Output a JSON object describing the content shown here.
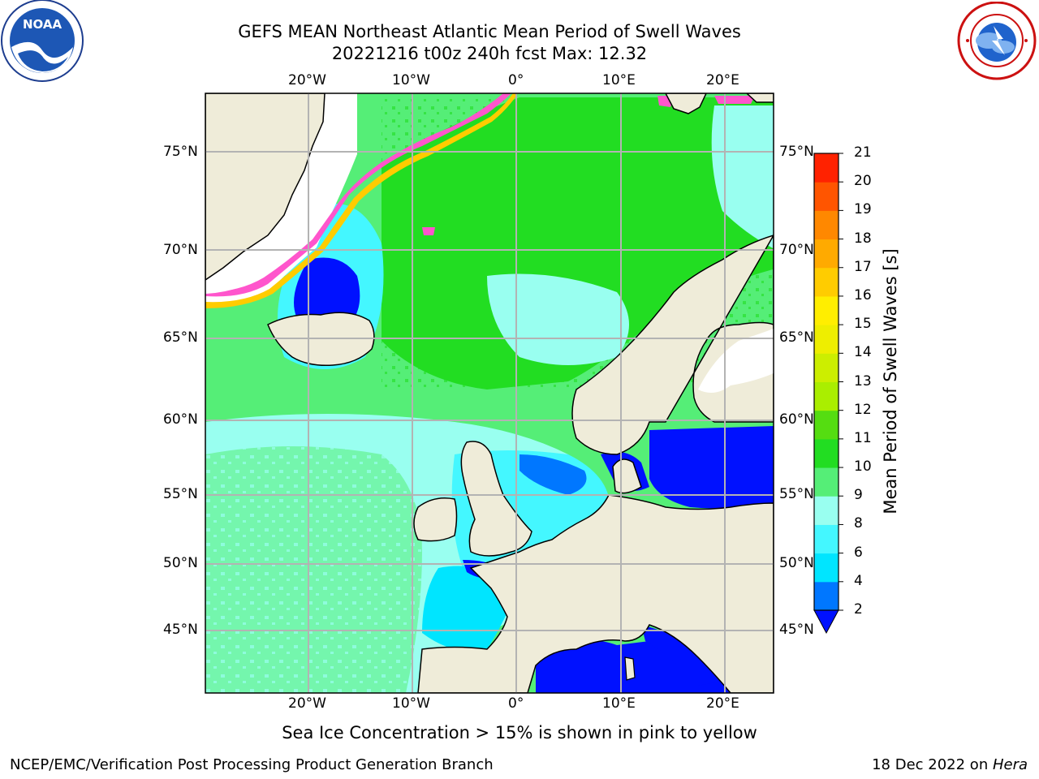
{
  "header": {
    "title_line1": "GEFS MEAN Northeast Atlantic Mean Period of Swell Waves",
    "title_line2": "20221216 t00z 240h fcst   Max: 12.32"
  },
  "map": {
    "lon_labels": [
      "20°W",
      "10°W",
      "0°",
      "10°E",
      "20°E"
    ],
    "lat_labels": [
      "75°N",
      "70°N",
      "65°N",
      "60°N",
      "55°N",
      "50°N",
      "45°N"
    ],
    "ocean_color": "#55ee77",
    "land_color": "#efecd9"
  },
  "colorbar": {
    "title": "Mean Period of Swell Waves [s]",
    "ticks": [
      "2",
      "4",
      "6",
      "8",
      "9",
      "10",
      "11",
      "12",
      "13",
      "14",
      "15",
      "16",
      "17",
      "18",
      "19",
      "20",
      "21"
    ],
    "colors": [
      "#0011ff",
      "#0077ff",
      "#00e5ff",
      "#44f7ff",
      "#99fff0",
      "#55ee77",
      "#22dd22",
      "#55dd11",
      "#aaee00",
      "#ccee00",
      "#eeee00",
      "#ffee00",
      "#ffcc00",
      "#ffaa00",
      "#ff8800",
      "#ff5500",
      "#ff2200",
      "#ff0000"
    ],
    "under_color": "#0011ff"
  },
  "caption": "Sea Ice Concentration > 15% is shown in pink to yellow",
  "footer": {
    "left": "NCEP/EMC/Verification Post Processing Product Generation Branch",
    "right_prefix": "18 Dec 2022 on ",
    "right_host": "Hera"
  },
  "logos": {
    "left": "noaa-logo",
    "right": "national-weather-service-logo"
  }
}
